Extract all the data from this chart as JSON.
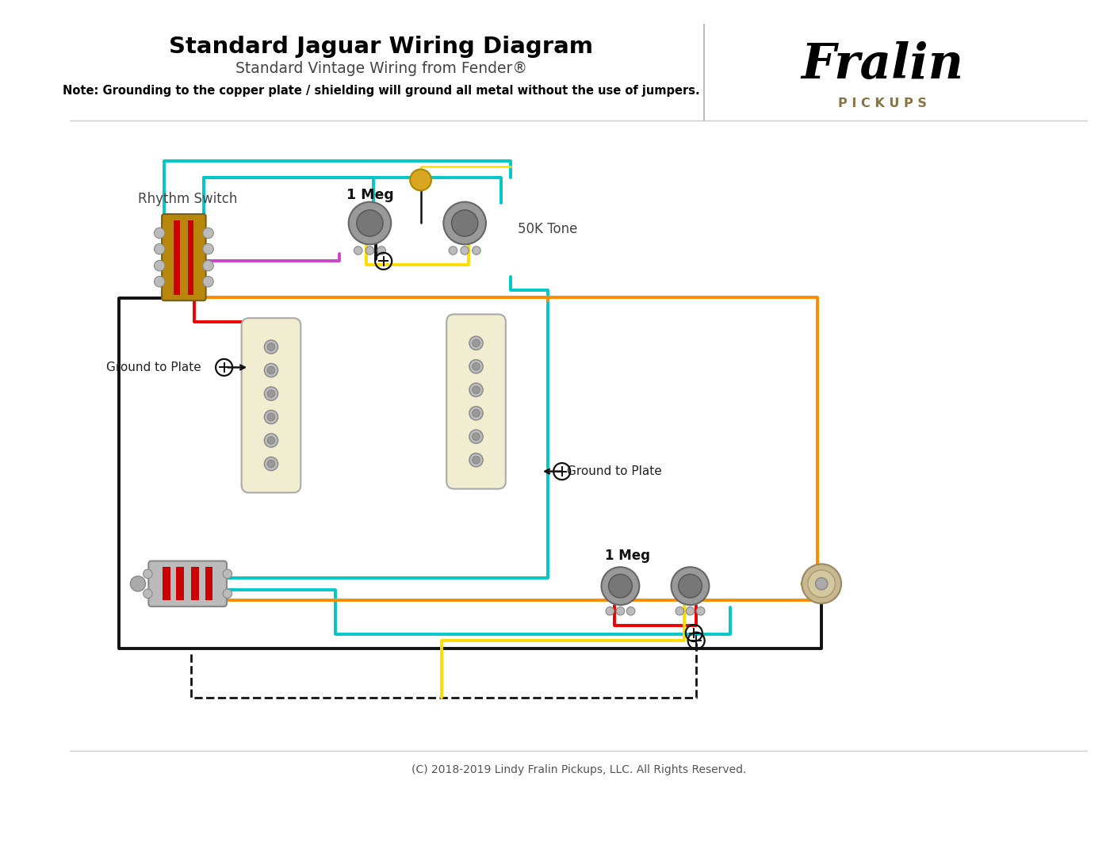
{
  "title": "Standard Jaguar Wiring Diagram",
  "subtitle": "Standard Vintage Wiring from Fender®",
  "note": "Note: Grounding to the copper plate / shielding will ground all metal without the use of jumpers.",
  "footer": "(C) 2018-2019 Lindy Fralin Pickups, LLC. All Rights Reserved.",
  "bg_color": "#ffffff",
  "title_color": "#000000",
  "subtitle_color": "#444444",
  "note_color": "#000000",
  "fralin_color": "#8B7340",
  "wire_teal": "#00C8C8",
  "wire_orange": "#FF8C00",
  "wire_red": "#EE0000",
  "wire_purple": "#CC44CC",
  "wire_yellow": "#FFDD00",
  "wire_black": "#111111",
  "wire_gray": "#888888",
  "pickup_body": "#F0EDD0",
  "pickup_poles": "#AAAAAA",
  "switch_wood": "#B8860B",
  "switch_red": "#CC0000",
  "cap_gold": "#DAA520",
  "pot_outer": "#999999",
  "pot_inner": "#777777",
  "pot_tab": "#BBBBBB",
  "screw_color": "#BBBBBB"
}
